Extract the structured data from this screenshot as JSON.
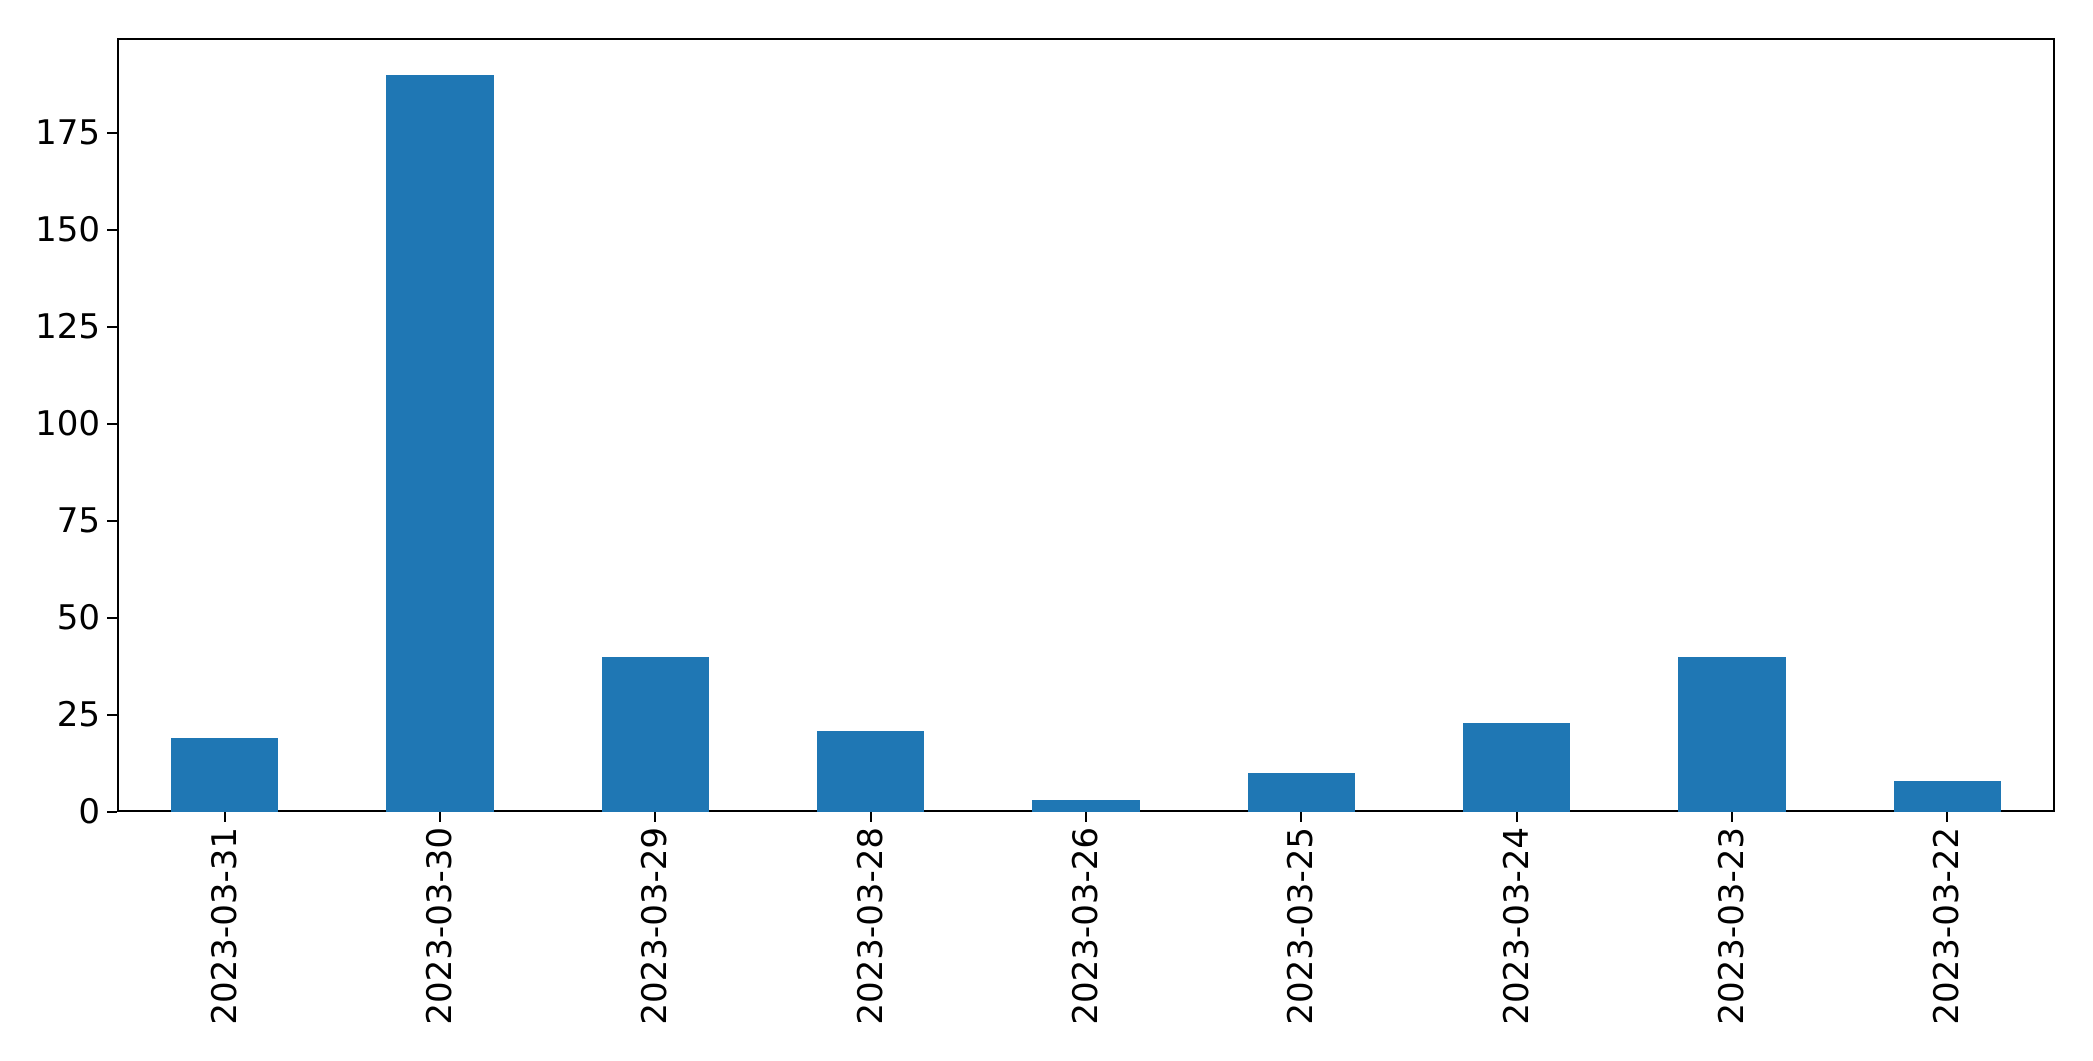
{
  "chart_data": {
    "type": "bar",
    "title": "",
    "xlabel": "",
    "ylabel": "",
    "categories": [
      "2023-03-31",
      "2023-03-30",
      "2023-03-29",
      "2023-03-28",
      "2023-03-26",
      "2023-03-25",
      "2023-03-24",
      "2023-03-23",
      "2023-03-22"
    ],
    "values": [
      19,
      190,
      40,
      21,
      3,
      10,
      23,
      40,
      8
    ],
    "yticks": [
      0,
      25,
      50,
      75,
      100,
      125,
      150,
      175
    ],
    "ylim": [
      0,
      199.5
    ],
    "bar_color": "#1f77b4",
    "bar_width_fraction": 0.5,
    "x_tick_rotation": 90,
    "grid": false,
    "legend": null,
    "axis_color": "#000000",
    "background_color": "#ffffff"
  }
}
